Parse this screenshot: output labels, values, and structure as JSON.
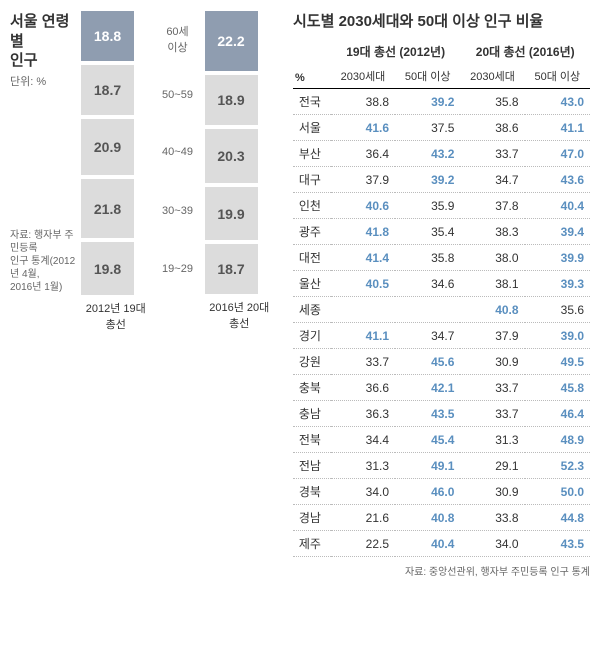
{
  "left": {
    "title_l1": "서울 연령별",
    "title_l2": "인구",
    "unit": "단위: %",
    "source": "자료: 행자부 주민등록\n인구 통계(2012년 4월,\n2016년 1월)",
    "col_a_label": "2012년 19대 총선",
    "col_b_label": "2016년 20대 총선",
    "rows": [
      {
        "mid": "60세\n이상",
        "a": 18.8,
        "b": 22.2,
        "a_h": 52,
        "b_h": 62,
        "hl": true
      },
      {
        "mid": "50~59",
        "a": 18.7,
        "b": 18.9,
        "a_h": 52,
        "b_h": 52
      },
      {
        "mid": "40~49",
        "a": 20.9,
        "b": 20.3,
        "a_h": 58,
        "b_h": 56
      },
      {
        "mid": "30~39",
        "a": 21.8,
        "b": 19.9,
        "a_h": 61,
        "b_h": 55
      },
      {
        "mid": "19~29",
        "a": 19.8,
        "b": 18.7,
        "a_h": 55,
        "b_h": 52
      }
    ],
    "colors": {
      "bar_normal_bg": "#dcdcdc",
      "bar_normal_fg": "#555555",
      "bar_hl_bg": "#8f9db0",
      "bar_hl_fg": "#ffffff"
    }
  },
  "right": {
    "title": "시도별 2030세대와 50대 이상 인구 비율",
    "corner": "%",
    "header1_a": "19대 총선 (2012년)",
    "header1_b": "20대 총선 (2016년)",
    "sub_2030": "2030세대",
    "sub_50": "50대 이상",
    "hl_color": "#5a8fbf",
    "rows": [
      {
        "region": "전국",
        "a1": "38.8",
        "a2": "39.2",
        "b1": "35.8",
        "b2": "43.0",
        "hl_a2": true,
        "hl_b2": true
      },
      {
        "region": "서울",
        "a1": "41.6",
        "a2": "37.5",
        "b1": "38.6",
        "b2": "41.1",
        "hl_a1": true,
        "hl_b2": true
      },
      {
        "region": "부산",
        "a1": "36.4",
        "a2": "43.2",
        "b1": "33.7",
        "b2": "47.0",
        "hl_a2": true,
        "hl_b2": true
      },
      {
        "region": "대구",
        "a1": "37.9",
        "a2": "39.2",
        "b1": "34.7",
        "b2": "43.6",
        "hl_a2": true,
        "hl_b2": true
      },
      {
        "region": "인천",
        "a1": "40.6",
        "a2": "35.9",
        "b1": "37.8",
        "b2": "40.4",
        "hl_a1": true,
        "hl_b2": true
      },
      {
        "region": "광주",
        "a1": "41.8",
        "a2": "35.4",
        "b1": "38.3",
        "b2": "39.4",
        "hl_a1": true,
        "hl_b2": true
      },
      {
        "region": "대전",
        "a1": "41.4",
        "a2": "35.8",
        "b1": "38.0",
        "b2": "39.9",
        "hl_a1": true,
        "hl_b2": true
      },
      {
        "region": "울산",
        "a1": "40.5",
        "a2": "34.6",
        "b1": "38.1",
        "b2": "39.3",
        "hl_a1": true,
        "hl_b2": true
      },
      {
        "region": "세종",
        "a1": "",
        "a2": "",
        "b1": "40.8",
        "b2": "35.6",
        "hl_b1": true
      },
      {
        "region": "경기",
        "a1": "41.1",
        "a2": "34.7",
        "b1": "37.9",
        "b2": "39.0",
        "hl_a1": true,
        "hl_b2": true
      },
      {
        "region": "강원",
        "a1": "33.7",
        "a2": "45.6",
        "b1": "30.9",
        "b2": "49.5",
        "hl_a2": true,
        "hl_b2": true
      },
      {
        "region": "충북",
        "a1": "36.6",
        "a2": "42.1",
        "b1": "33.7",
        "b2": "45.8",
        "hl_a2": true,
        "hl_b2": true
      },
      {
        "region": "충남",
        "a1": "36.3",
        "a2": "43.5",
        "b1": "33.7",
        "b2": "46.4",
        "hl_a2": true,
        "hl_b2": true
      },
      {
        "region": "전북",
        "a1": "34.4",
        "a2": "45.4",
        "b1": "31.3",
        "b2": "48.9",
        "hl_a2": true,
        "hl_b2": true
      },
      {
        "region": "전남",
        "a1": "31.3",
        "a2": "49.1",
        "b1": "29.1",
        "b2": "52.3",
        "hl_a2": true,
        "hl_b2": true
      },
      {
        "region": "경북",
        "a1": "34.0",
        "a2": "46.0",
        "b1": "30.9",
        "b2": "50.0",
        "hl_a2": true,
        "hl_b2": true
      },
      {
        "region": "경남",
        "a1": "21.6",
        "a2": "40.8",
        "b1": "33.8",
        "b2": "44.8",
        "hl_a2": true,
        "hl_b2": true
      },
      {
        "region": "제주",
        "a1": "22.5",
        "a2": "40.4",
        "b1": "34.0",
        "b2": "43.5",
        "hl_a2": true,
        "hl_b2": true
      }
    ],
    "source": "자료: 중앙선관위, 행자부 주민등록 인구 통계"
  }
}
